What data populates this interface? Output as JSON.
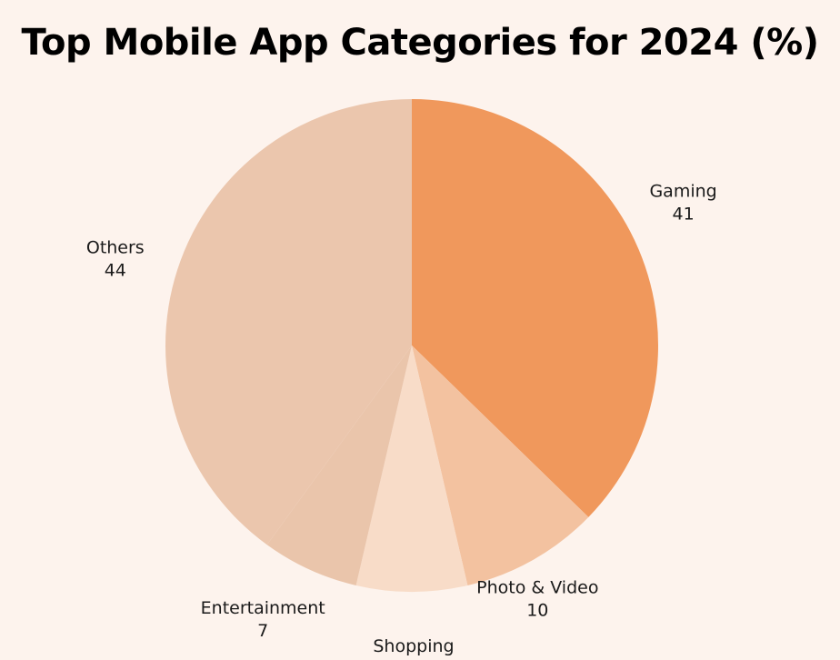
{
  "chart_data": {
    "type": "pie",
    "title": "Top Mobile App Categories for 2024 (%)",
    "slices": [
      {
        "label": "Gaming",
        "value": 41,
        "color": "#f0985c"
      },
      {
        "label": "Photo & Video",
        "value": 10,
        "color": "#f3c2a0"
      },
      {
        "label": "Shopping",
        "value": 8,
        "color": "#f8dcc8"
      },
      {
        "label": "Entertainment",
        "value": 7,
        "color": "#eac5ab"
      },
      {
        "label": "Others",
        "value": 44,
        "color": "#ebc6ad"
      }
    ],
    "start_angle": "12 o'clock",
    "direction": "clockwise",
    "legend": "none",
    "background": "#fdf3ed"
  }
}
